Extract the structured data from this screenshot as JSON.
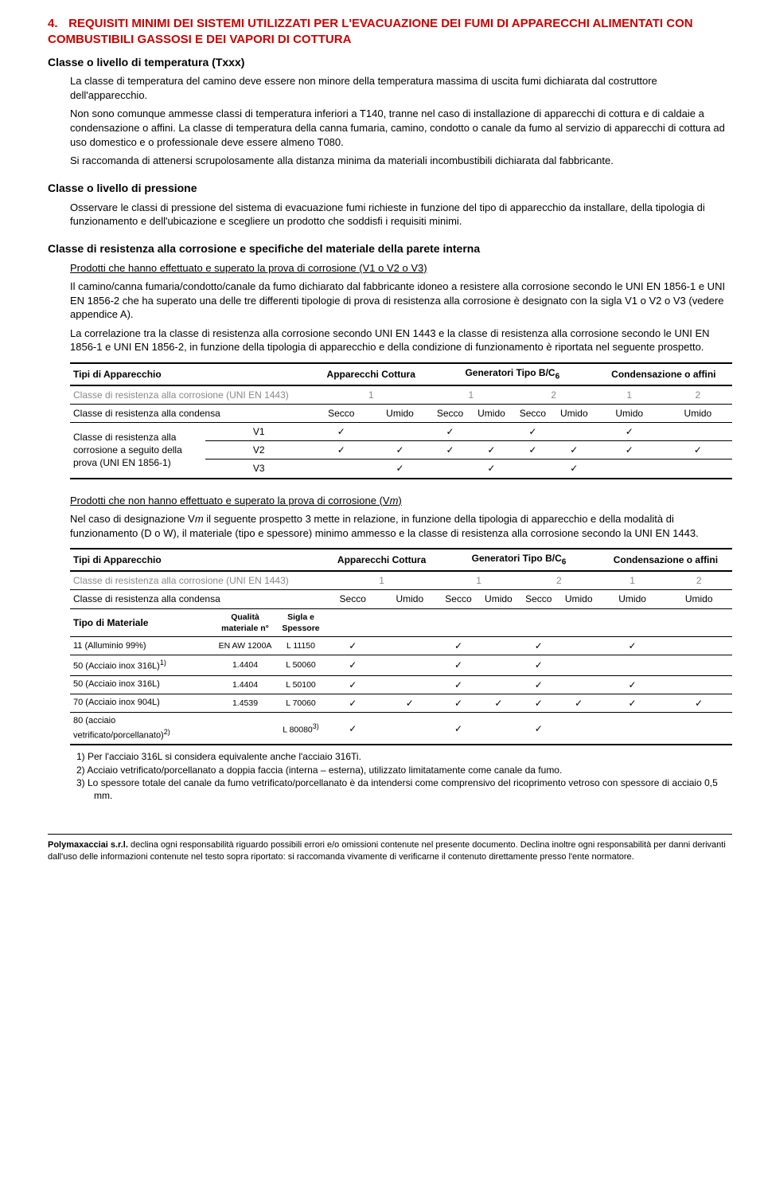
{
  "section": {
    "num": "4.",
    "title": "REQUISITI MINIMI DEI SISTEMI UTILIZZATI PER L'EVACUAZIONE DEI FUMI DI APPARECCHI ALIMENTATI CON COMBUSTIBILI GASSOSI E DEI VAPORI DI COTTURA"
  },
  "txxx": {
    "heading": "Classe o livello di temperatura (Txxx)",
    "p1": "La classe di temperatura del camino deve essere non minore della temperatura massima di uscita fumi dichiarata dal costruttore dell'apparecchio.",
    "p2": "Non sono comunque ammesse classi di temperatura inferiori a T140, tranne nel caso di installazione di apparecchi di cottura e di caldaie a condensazione o affini. La classe di temperatura della canna fumaria, camino, condotto o canale da fumo al servizio di apparecchi di cottura ad uso domestico e o professionale deve essere almeno T080.",
    "p3": "Si raccomanda di attenersi scrupolosamente alla distanza minima da materiali incombustibili dichiarata dal fabbricante."
  },
  "pressione": {
    "heading": "Classe o livello di pressione",
    "p1": "Osservare le classi di pressione del sistema di evacuazione fumi richieste in funzione del tipo di apparecchio da installare, della tipologia di funzionamento e dell'ubicazione e scegliere un prodotto che soddisfi i requisiti minimi."
  },
  "corrosione": {
    "heading": "Classe di resistenza alla corrosione e specifiche del materiale della parete interna",
    "sub1": "Prodotti che hanno effettuato e superato la prova di corrosione (V1 o V2 o V3)",
    "p1": "Il camino/canna fumaria/condotto/canale da fumo dichiarato dal fabbricante idoneo a resistere alla corrosione secondo le UNI EN 1856-1 e UNI EN 1856-2 che ha superato una delle tre differenti tipologie di prova di resistenza alla corrosione è designato con la sigla V1 o V2 o V3 (vedere appendice A).",
    "p2": "La correlazione tra la classe di resistenza alla corrosione secondo UNI EN 1443 e la classe di resistenza alla corrosione secondo le UNI EN 1856-1 e UNI EN 1856-2, in funzione della tipologia di apparecchio e della condizione di funzionamento è riportata nel seguente prospetto."
  },
  "tbl1": {
    "headers": {
      "c0": "Tipi di Apparecchio",
      "c1": "Apparecchi Cottura",
      "c2": "Generatori Tipo B/C",
      "c2_sub": "6",
      "c3": "Condensazione o affini"
    },
    "rows": [
      {
        "label": "Classe di resistenza alla corrosione (UNI EN 1443)",
        "grey": true,
        "cells": [
          "1",
          "1",
          "",
          "2",
          "",
          "1",
          "2"
        ]
      },
      {
        "label": "Classe di resistenza alla condensa",
        "cells": [
          "Secco",
          "Umido",
          "Secco",
          "Umido",
          "Secco",
          "Umido",
          "Umido",
          "Umido"
        ]
      }
    ],
    "vgroup_label": "Classe di resistenza alla corrosione a seguito della prova (UNI EN 1856-1)",
    "vrows": [
      {
        "v": "V1",
        "cells": [
          "✓",
          "",
          "✓",
          "",
          "✓",
          "",
          "✓",
          ""
        ]
      },
      {
        "v": "V2",
        "cells": [
          "✓",
          "✓",
          "✓",
          "✓",
          "✓",
          "✓",
          "✓",
          "✓"
        ]
      },
      {
        "v": "V3",
        "cells": [
          "",
          "✓",
          "",
          "✓",
          "",
          "✓",
          "",
          ""
        ]
      }
    ]
  },
  "vm": {
    "sub": "Prodotti che non hanno effettuato e superato la prova di corrosione (V",
    "sub_m": "m",
    "sub_end": ")",
    "p1a": "Nel caso di designazione V",
    "p1m": "m",
    "p1b": " il seguente prospetto 3 mette in relazione, in funzione della tipologia di apparecchio e della modalità di funzionamento (D o W), il materiale (tipo e spessore) minimo ammesso e la classe di resistenza alla corrosione secondo la UNI EN 1443."
  },
  "tbl2": {
    "headers": {
      "c0": "Tipi di Apparecchio",
      "c1": "Apparecchi Cottura",
      "c2": "Generatori Tipo B/C",
      "c2_sub": "6",
      "c3": "Condensazione o affini"
    },
    "r_corr": {
      "label": "Classe di resistenza alla corrosione (UNI EN 1443)",
      "cells": [
        "1",
        "1",
        "",
        "2",
        "",
        "1",
        "2"
      ]
    },
    "r_cond": {
      "label": "Classe di resistenza alla condensa",
      "cells": [
        "Secco",
        "Umido",
        "Secco",
        "Umido",
        "Secco",
        "Umido",
        "Umido",
        "Umido"
      ]
    },
    "mat_label": "Tipo di Materiale",
    "mat_sub1": "Qualità materiale n°",
    "mat_sub2": "Sigla e Spessore",
    "materials": [
      {
        "name": "11 (Alluminio 99%)",
        "q": "EN AW 1200A",
        "s": "L 11150",
        "cells": [
          "✓",
          "",
          "✓",
          "",
          "✓",
          "",
          "✓",
          ""
        ]
      },
      {
        "name": "50 (Acciaio inox 316L)",
        "sup": "1)",
        "q": "1.4404",
        "s": "L 50060",
        "cells": [
          "✓",
          "",
          "✓",
          "",
          "✓",
          "",
          "",
          ""
        ]
      },
      {
        "name": "50 (Acciaio inox 316L)",
        "q": "1.4404",
        "s": "L 50100",
        "cells": [
          "✓",
          "",
          "✓",
          "",
          "✓",
          "",
          "✓",
          ""
        ]
      },
      {
        "name": "70 (Acciaio inox 904L)",
        "q": "1.4539",
        "s": "L 70060",
        "cells": [
          "✓",
          "✓",
          "✓",
          "✓",
          "✓",
          "✓",
          "✓",
          "✓"
        ]
      },
      {
        "name": "80 (acciaio vetrificato/porcellanato)",
        "sup": "2)",
        "q": "",
        "s": "L 80080",
        "ssup": "3)",
        "cells": [
          "✓",
          "",
          "✓",
          "",
          "✓",
          "",
          "",
          ""
        ]
      }
    ],
    "notes": [
      {
        "n": "1)",
        "t": "Per l'acciaio 316L si considera equivalente anche l'acciaio 316Ti."
      },
      {
        "n": "2)",
        "t": "Acciaio vetrificato/porcellanato a doppia faccia (interna – esterna), utilizzato limitatamente come canale da fumo."
      },
      {
        "n": "3)",
        "t": "Lo spessore totale del canale da fumo vetrificato/porcellanato è da intendersi come comprensivo del ricoprimento vetroso con spessore di acciaio 0,5 mm."
      }
    ]
  },
  "footer": {
    "company": "Polymaxacciai s.r.l.",
    "text": " declina ogni responsabilità riguardo possibili errori e/o omissioni contenute nel presente documento. Declina inoltre ogni responsabilità per danni derivanti dall'uso delle informazioni contenute nel testo sopra riportato: si raccomanda vivamente di verificarne il contenuto direttamente presso l'ente normatore."
  }
}
